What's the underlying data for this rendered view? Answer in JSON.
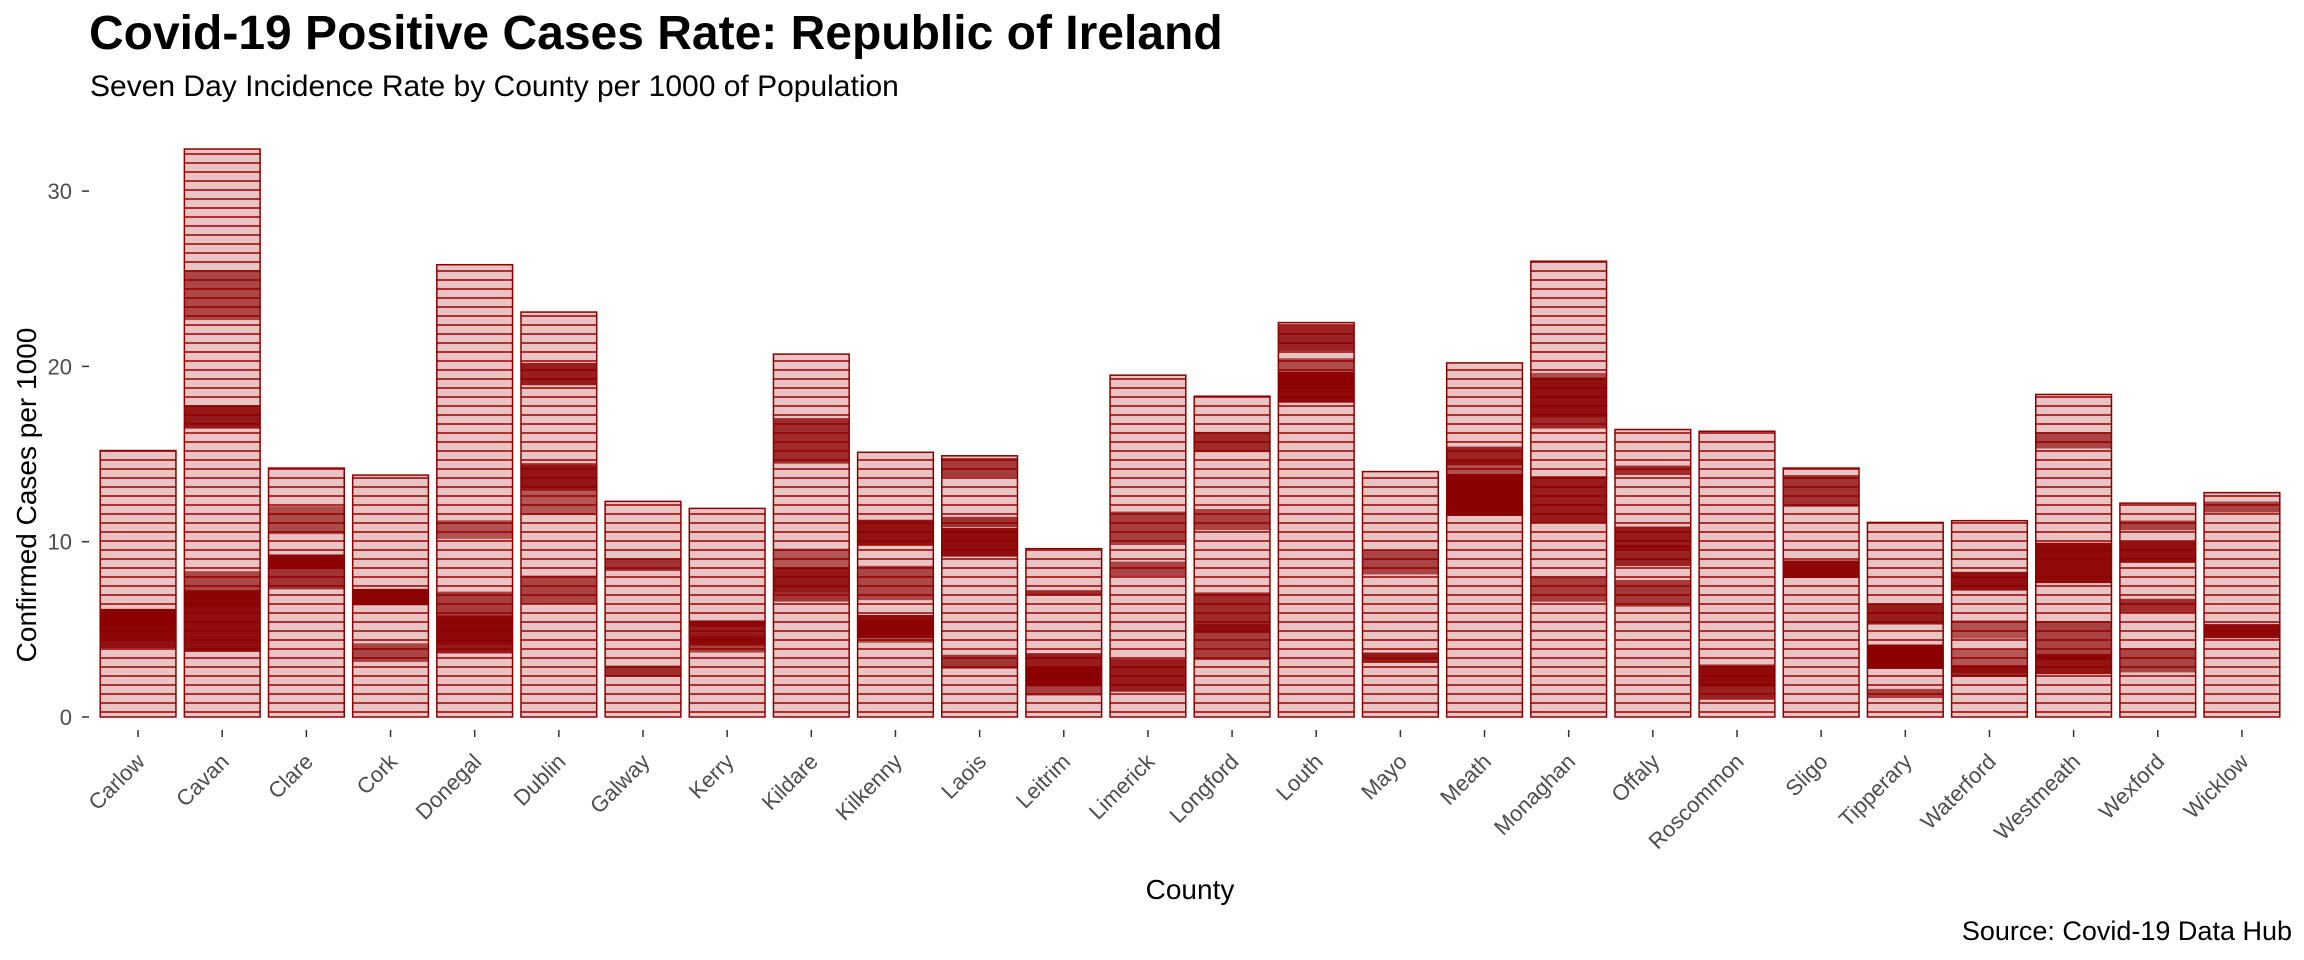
{
  "chart_data": {
    "type": "bar",
    "title": "Covid-19 Positive Cases Rate: Republic of Ireland",
    "subtitle": "Seven Day Incidence Rate by County per 1000 of Population",
    "caption": "Source: Covid-19 Data Hub",
    "xlabel": "County",
    "ylabel": "Confirmed Cases per 1000",
    "ylim": [
      -0.5,
      32.5
    ],
    "yticks": [
      0,
      10,
      20,
      30
    ],
    "ytick_labels": [
      "0",
      "10",
      "20",
      "30"
    ],
    "grid": false,
    "legend": "none",
    "fill_color": "#8B0000",
    "light_fill_color": "#E8C4C4",
    "categories": [
      "Carlow",
      "Cavan",
      "Clare",
      "Cork",
      "Donegal",
      "Dublin",
      "Galway",
      "Kerry",
      "Kildare",
      "Kilkenny",
      "Laois",
      "Leitrim",
      "Limerick",
      "Longford",
      "Louth",
      "Mayo",
      "Meath",
      "Monaghan",
      "Offaly",
      "Roscommon",
      "Sligo",
      "Tipperary",
      "Waterford",
      "Westmeath",
      "Wexford",
      "Wicklow"
    ],
    "values": [
      15.2,
      32.4,
      14.2,
      13.8,
      25.8,
      23.1,
      12.3,
      11.9,
      20.7,
      15.1,
      14.9,
      9.6,
      19.5,
      18.3,
      22.5,
      14.0,
      20.2,
      26.0,
      16.4,
      16.3,
      14.2,
      11.1,
      11.2,
      18.4,
      12.2,
      12.8
    ]
  }
}
